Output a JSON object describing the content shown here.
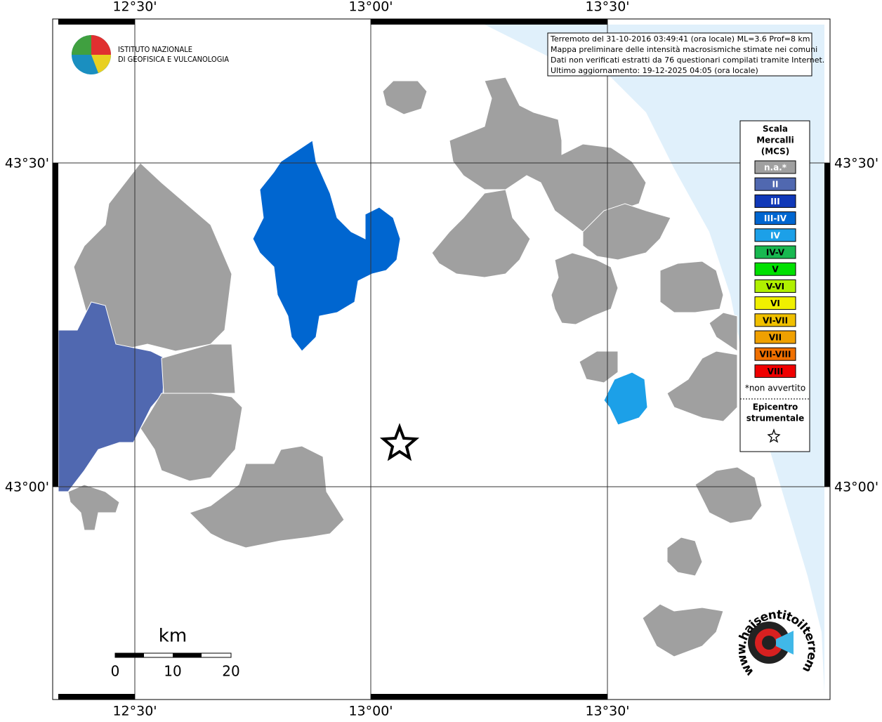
{
  "x_labels": [
    "12°30'",
    "13°00'",
    "13°30'"
  ],
  "y_labels": [
    "43°30'",
    "43°00'"
  ],
  "logo": {
    "line1": "ISTITUTO NAZIONALE",
    "line2": "DI GEOFISICA E VULCANOLOGIA"
  },
  "info": [
    "Terremoto del 31-10-2016 03:49:41 (ora locale) ML=3.6 Prof=8 km",
    "Mappa preliminare delle intensità macrosismiche stimate nei comuni",
    "Dati non verificati estratti da 76 questionari compilati tramite Internet.",
    "Ultimo aggiornamento: 19-12-2025 04:05 (ora locale)"
  ],
  "legend": {
    "title": [
      "Scala",
      "Mercalli",
      "(MCS)"
    ],
    "items": [
      {
        "label": "n.a.*",
        "color": "#a0a0a0"
      },
      {
        "label": "II",
        "color": "#5068b0"
      },
      {
        "label": "III",
        "color": "#1038b8"
      },
      {
        "label": "III-IV",
        "color": "#0066d0"
      },
      {
        "label": "IV",
        "color": "#1ca0e8"
      },
      {
        "label": "IV-V",
        "color": "#18b850"
      },
      {
        "label": "V",
        "color": "#00e000"
      },
      {
        "label": "V-VI",
        "color": "#b0f000"
      },
      {
        "label": "VI",
        "color": "#f0f000"
      },
      {
        "label": "VI-VII",
        "color": "#f0c000"
      },
      {
        "label": "VII",
        "color": "#f0a000"
      },
      {
        "label": "VII-VIII",
        "color": "#f07000"
      },
      {
        "label": "VIII",
        "color": "#f00000"
      }
    ],
    "note": "*non avvertito",
    "epicenter": [
      "Epicentro",
      "strumentale"
    ]
  },
  "scale_bar": {
    "unit": "km",
    "labels": [
      0,
      10,
      20
    ]
  },
  "site_logo": "www.haisentitoilterremoto.it"
}
